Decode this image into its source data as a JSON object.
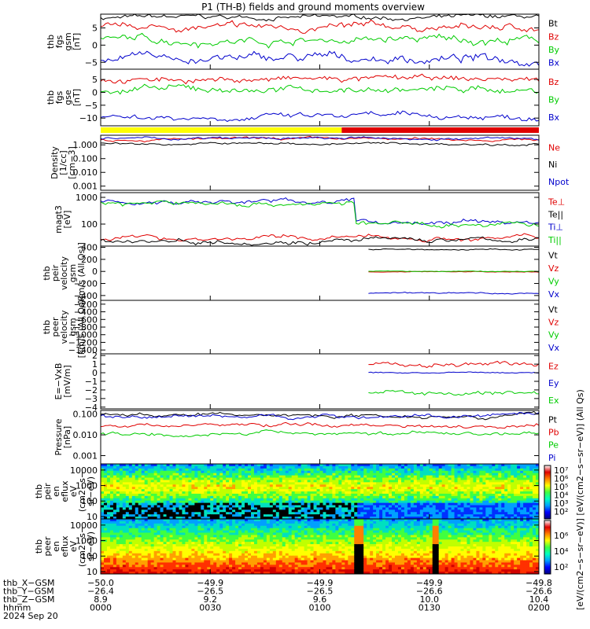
{
  "title": "P1 (TH-B) fields and ground moments overview",
  "date": "2024 Sep 20",
  "chart_data": [
    {
      "id": "fgs_gsm",
      "type": "line",
      "ylabel": [
        "thb",
        "fgs",
        "gsm",
        "[nT]"
      ],
      "ylim": [
        -7,
        9
      ],
      "yticks": [
        {
          "v": 5,
          "t": "5"
        },
        {
          "v": 0,
          "t": "0"
        },
        {
          "v": -5,
          "t": "−5"
        }
      ],
      "series": [
        {
          "name": "Bt",
          "color": "#000000",
          "base": 8,
          "amp": 0.9
        },
        {
          "name": "Bz",
          "color": "#e00000",
          "base": 5,
          "amp": 1.4
        },
        {
          "name": "By",
          "color": "#00cc00",
          "base": 1.5,
          "amp": 1.6
        },
        {
          "name": "Bx",
          "color": "#0000cc",
          "base": -4,
          "amp": 1.8
        }
      ]
    },
    {
      "id": "fgs_gse",
      "type": "line",
      "ylabel": [
        "thb",
        "fgs",
        "gse",
        "[nT]"
      ],
      "ylim": [
        -13,
        9
      ],
      "yticks": [
        {
          "v": 5,
          "t": "5"
        },
        {
          "v": 0,
          "t": "0"
        },
        {
          "v": -5,
          "t": "−5"
        },
        {
          "v": -10,
          "t": "−10"
        }
      ],
      "series": [
        {
          "name": "Bz",
          "color": "#e00000",
          "base": 5,
          "amp": 1.6
        },
        {
          "name": "By",
          "color": "#00cc00",
          "base": 1,
          "amp": 1.8
        },
        {
          "name": "Bx",
          "color": "#0000cc",
          "base": -9.5,
          "amp": 1.6
        }
      ]
    },
    {
      "id": "density",
      "type": "line",
      "scale": "log",
      "ylabel": [
        "Density",
        "[1/cc]",
        "[cm−3]"
      ],
      "ylim": [
        0.0005,
        5
      ],
      "yticks": [
        {
          "v": 1,
          "t": "1.000"
        },
        {
          "v": 0.1,
          "t": "0.100"
        },
        {
          "v": 0.01,
          "t": "0.010"
        },
        {
          "v": 0.001,
          "t": "0.001"
        }
      ],
      "series": [
        {
          "name": "Ne",
          "color": "#e00000",
          "base": 2.5,
          "amp": 0.1
        },
        {
          "name": "Ni",
          "color": "#000000",
          "base": 1.2,
          "amp": 0.1
        },
        {
          "name": "Npot",
          "color": "#0000cc",
          "base": 2.8,
          "amp": 0.1
        }
      ]
    },
    {
      "id": "temperature",
      "type": "line",
      "scale": "log",
      "ylabel": [
        "magt3",
        "[eV]"
      ],
      "ylim": [
        15,
        1500
      ],
      "yticks": [
        {
          "v": 1000,
          "t": "1000"
        },
        {
          "v": 100,
          "t": "100"
        }
      ],
      "series": [
        {
          "name": "Te⊥",
          "color": "#e00000",
          "base": 30,
          "amp": 0.1
        },
        {
          "name": "Te||",
          "color": "#000000",
          "base": 25,
          "amp": 0.1
        },
        {
          "name": "Ti⊥",
          "color": "#0000cc",
          "base": 700,
          "amp": 0.1
        },
        {
          "name": "Ti||",
          "color": "#00cc00",
          "base": 600,
          "amp": 0.1
        }
      ]
    },
    {
      "id": "peir_velocity",
      "type": "line",
      "ylabel": [
        "thb",
        "peir",
        "velocity",
        "gsm",
        "[km/s (All Qs)]"
      ],
      "ylim": [
        -480,
        420
      ],
      "yticks": [
        {
          "v": 400,
          "t": "400"
        },
        {
          "v": 200,
          "t": "200"
        },
        {
          "v": 0,
          "t": "0"
        },
        {
          "v": -200,
          "t": "−200"
        },
        {
          "v": -400,
          "t": "−400"
        }
      ],
      "series": [
        {
          "name": "Vt",
          "color": "#000000",
          "base": 360,
          "amp": 15
        },
        {
          "name": "Vz",
          "color": "#e00000",
          "base": -10,
          "amp": 10
        },
        {
          "name": "Vy",
          "color": "#00cc00",
          "base": 0,
          "amp": 10
        },
        {
          "name": "Vx",
          "color": "#0000cc",
          "base": -360,
          "amp": 15
        }
      ]
    },
    {
      "id": "peer_velocity",
      "type": "line",
      "ylabel": [
        "thb",
        "peer",
        "velocity",
        "gsm",
        "[km/s (All Qs)]"
      ],
      "ylim": [
        -1500,
        -100
      ],
      "yticks": [
        {
          "v": -200,
          "t": "−200"
        },
        {
          "v": -400,
          "t": "−400"
        },
        {
          "v": -600,
          "t": "−600"
        },
        {
          "v": -800,
          "t": "−800"
        },
        {
          "v": -1000,
          "t": "−1000"
        },
        {
          "v": -1200,
          "t": "−1200"
        },
        {
          "v": -1400,
          "t": "−1400"
        }
      ],
      "series": [
        {
          "name": "Vt",
          "color": "#000000"
        },
        {
          "name": "Vz",
          "color": "#e00000"
        },
        {
          "name": "Vy",
          "color": "#00cc00"
        },
        {
          "name": "Vx",
          "color": "#0000cc"
        }
      ]
    },
    {
      "id": "efield",
      "type": "line",
      "ylabel": [
        "E=−VxB",
        "[mV/m]"
      ],
      "ylim": [
        -4.2,
        2.2
      ],
      "yticks": [
        {
          "v": 2,
          "t": "2"
        },
        {
          "v": 1,
          "t": "1"
        },
        {
          "v": 0,
          "t": "0"
        },
        {
          "v": -1,
          "t": "−1"
        },
        {
          "v": -2,
          "t": "−2"
        },
        {
          "v": -3,
          "t": "−3"
        },
        {
          "v": -4,
          "t": "−4"
        }
      ],
      "series": [
        {
          "name": "Ez",
          "color": "#e00000",
          "base": 1,
          "amp": 0.4
        },
        {
          "name": "Ey",
          "color": "#0000cc",
          "base": 0,
          "amp": 0.1
        },
        {
          "name": "Ex",
          "color": "#00cc00",
          "base": -2.3,
          "amp": 0.35
        }
      ]
    },
    {
      "id": "pressure",
      "type": "line",
      "scale": "log",
      "ylabel": [
        "Pressure",
        "[nPa]"
      ],
      "ylim": [
        0.0004,
        0.15
      ],
      "yticks": [
        {
          "v": 0.1,
          "t": "0.100"
        },
        {
          "v": 0.01,
          "t": "0.010"
        },
        {
          "v": 0.001,
          "t": "0.001"
        }
      ],
      "series": [
        {
          "name": "Pt",
          "color": "#000000",
          "base": 0.09,
          "amp": 0.1
        },
        {
          "name": "Pb",
          "color": "#e00000",
          "base": 0.03,
          "amp": 0.1
        },
        {
          "name": "Pe",
          "color": "#00cc00",
          "base": 0.012,
          "amp": 0.1
        },
        {
          "name": "Pi",
          "color": "#0000cc",
          "base": 0.08,
          "amp": 0.1
        }
      ]
    },
    {
      "id": "peir_spec",
      "type": "heatmap",
      "scale": "log",
      "ylabel": [
        "thb",
        "peir",
        "en",
        "eflux",
        "eV",
        "(cm2−s−",
        "sr−eV)"
      ],
      "ylim": [
        7,
        25000
      ],
      "yticks": [
        {
          "v": 10000,
          "t": "10000"
        },
        {
          "v": 1000,
          "t": "1000"
        },
        {
          "v": 100,
          "t": "100"
        },
        {
          "v": 10,
          "t": "10"
        }
      ]
    },
    {
      "id": "peer_spec",
      "type": "heatmap",
      "scale": "log",
      "ylabel": [
        "thb",
        "peer",
        "en",
        "eflux",
        "eV",
        "(cm2−s−",
        "sr−eV)"
      ],
      "ylim": [
        7,
        25000
      ],
      "yticks": [
        {
          "v": 10000,
          "t": "10000"
        },
        {
          "v": 1000,
          "t": "1000"
        },
        {
          "v": 100,
          "t": "100"
        },
        {
          "v": 10,
          "t": "10"
        }
      ]
    }
  ],
  "colorbar": {
    "label": "[eV/(cm2−s−sr−eV)]  [eV/(cm2−s−sr−eV)] (All Qs)",
    "ticks1": [
      "10⁷",
      "10⁶",
      "10⁵",
      "10⁴",
      "10³",
      "10²"
    ],
    "ticks2": [
      "10⁶",
      "10⁴",
      "10²"
    ]
  },
  "xaxis": {
    "rows": [
      {
        "label": "thb_X−GSM",
        "values": [
          "−50.0",
          "−49.9",
          "−49.9",
          "−49.9",
          "−49.8"
        ]
      },
      {
        "label": "thb_Y−GSM",
        "values": [
          "−26.4",
          "−26.5",
          "−26.5",
          "−26.6",
          "−26.6"
        ]
      },
      {
        "label": "thb_Z−GSM",
        "values": [
          "8.9",
          "9.2",
          "9.6",
          "10.0",
          "10.4"
        ]
      },
      {
        "label": "hhmm",
        "values": [
          "0000",
          "0030",
          "0100",
          "0130",
          "0200"
        ]
      }
    ]
  },
  "mode_bar": [
    {
      "from": 0,
      "to": 0.55,
      "color": "#ffff00"
    },
    {
      "from": 0.55,
      "to": 1,
      "color": "#e00000"
    }
  ]
}
